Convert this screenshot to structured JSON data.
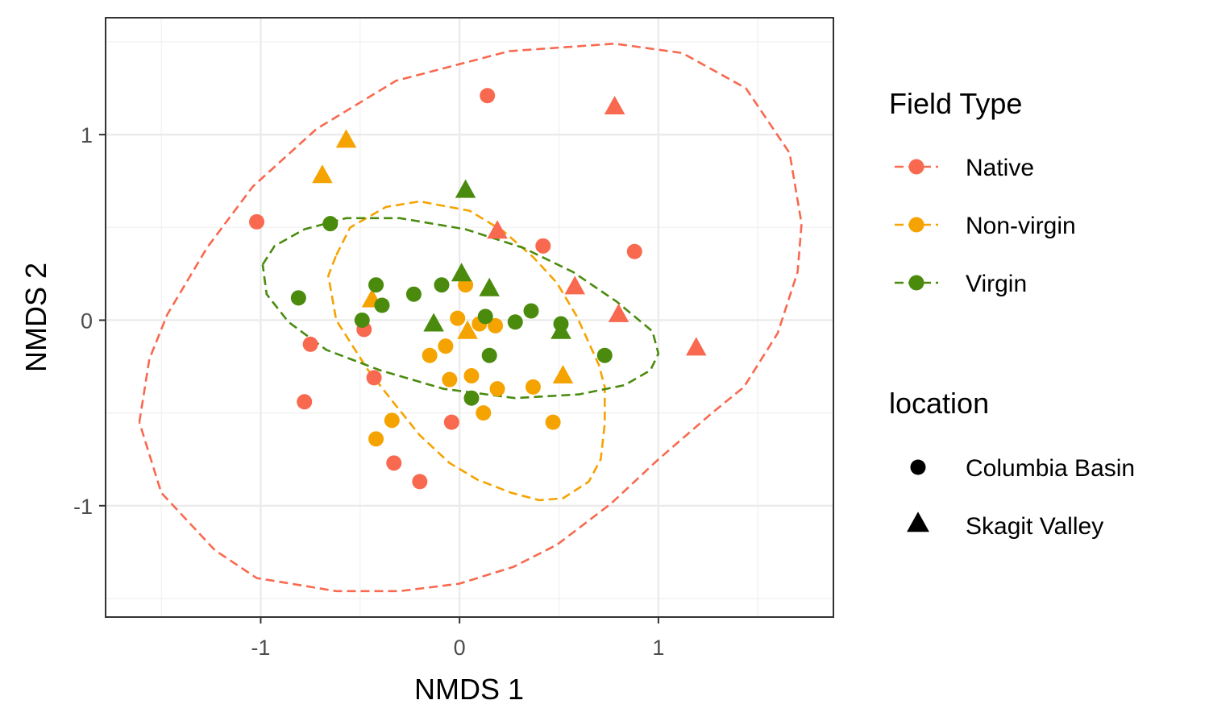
{
  "chart_data": {
    "type": "scatter",
    "xlabel": "NMDS 1",
    "ylabel": "NMDS 2",
    "xlim": [
      -1.78,
      1.88
    ],
    "ylim": [
      -1.6,
      1.63
    ],
    "x_ticks": [
      -1,
      0,
      1
    ],
    "y_ticks": [
      -1,
      0,
      1
    ],
    "x_tick_labels": [
      "-1",
      "0",
      "1"
    ],
    "y_tick_labels": [
      "-1",
      "0",
      "1"
    ],
    "grid": true,
    "legend_position": "right",
    "legends": [
      {
        "title": "Field Type",
        "entries": [
          {
            "label": "Native",
            "color": "#F8694F"
          },
          {
            "label": "Non-virgin",
            "color": "#F5A300"
          },
          {
            "label": "Virgin",
            "color": "#4A8B0E"
          }
        ]
      },
      {
        "title": "location",
        "entries": [
          {
            "label": "Columbia Basin",
            "shape": "circle"
          },
          {
            "label": "Skagit Valley",
            "shape": "triangle"
          }
        ]
      }
    ],
    "series": [
      {
        "name": "Native",
        "color": "#F8694F",
        "points": [
          {
            "x": 0.14,
            "y": 1.21,
            "location": "Columbia Basin"
          },
          {
            "x": -1.02,
            "y": 0.53,
            "location": "Columbia Basin"
          },
          {
            "x": 0.42,
            "y": 0.4,
            "location": "Columbia Basin"
          },
          {
            "x": 0.88,
            "y": 0.37,
            "location": "Columbia Basin"
          },
          {
            "x": -0.48,
            "y": -0.05,
            "location": "Columbia Basin"
          },
          {
            "x": -0.75,
            "y": -0.13,
            "location": "Columbia Basin"
          },
          {
            "x": -0.43,
            "y": -0.31,
            "location": "Columbia Basin"
          },
          {
            "x": -0.78,
            "y": -0.44,
            "location": "Columbia Basin"
          },
          {
            "x": -0.04,
            "y": -0.55,
            "location": "Columbia Basin"
          },
          {
            "x": -0.33,
            "y": -0.77,
            "location": "Columbia Basin"
          },
          {
            "x": -0.2,
            "y": -0.87,
            "location": "Columbia Basin"
          },
          {
            "x": 0.78,
            "y": 1.15,
            "location": "Skagit Valley"
          },
          {
            "x": 0.19,
            "y": 0.48,
            "location": "Skagit Valley"
          },
          {
            "x": 0.58,
            "y": 0.18,
            "location": "Skagit Valley"
          },
          {
            "x": 0.8,
            "y": 0.03,
            "location": "Skagit Valley"
          },
          {
            "x": 1.19,
            "y": -0.15,
            "location": "Skagit Valley"
          }
        ]
      },
      {
        "name": "Non-virgin",
        "color": "#F5A300",
        "points": [
          {
            "x": 0.03,
            "y": 0.19,
            "location": "Columbia Basin"
          },
          {
            "x": -0.01,
            "y": 0.01,
            "location": "Columbia Basin"
          },
          {
            "x": 0.1,
            "y": -0.02,
            "location": "Columbia Basin"
          },
          {
            "x": 0.18,
            "y": -0.03,
            "location": "Columbia Basin"
          },
          {
            "x": -0.07,
            "y": -0.14,
            "location": "Columbia Basin"
          },
          {
            "x": -0.15,
            "y": -0.19,
            "location": "Columbia Basin"
          },
          {
            "x": -0.05,
            "y": -0.32,
            "location": "Columbia Basin"
          },
          {
            "x": 0.06,
            "y": -0.3,
            "location": "Columbia Basin"
          },
          {
            "x": 0.19,
            "y": -0.37,
            "location": "Columbia Basin"
          },
          {
            "x": 0.37,
            "y": -0.36,
            "location": "Columbia Basin"
          },
          {
            "x": 0.12,
            "y": -0.5,
            "location": "Columbia Basin"
          },
          {
            "x": -0.34,
            "y": -0.54,
            "location": "Columbia Basin"
          },
          {
            "x": 0.47,
            "y": -0.55,
            "location": "Columbia Basin"
          },
          {
            "x": -0.42,
            "y": -0.64,
            "location": "Columbia Basin"
          },
          {
            "x": -0.57,
            "y": 0.97,
            "location": "Skagit Valley"
          },
          {
            "x": -0.69,
            "y": 0.78,
            "location": "Skagit Valley"
          },
          {
            "x": -0.44,
            "y": 0.11,
            "location": "Skagit Valley"
          },
          {
            "x": 0.04,
            "y": -0.06,
            "location": "Skagit Valley"
          },
          {
            "x": 0.52,
            "y": -0.3,
            "location": "Skagit Valley"
          }
        ]
      },
      {
        "name": "Virgin",
        "color": "#4A8B0E",
        "points": [
          {
            "x": -0.65,
            "y": 0.52,
            "location": "Columbia Basin"
          },
          {
            "x": -0.81,
            "y": 0.12,
            "location": "Columbia Basin"
          },
          {
            "x": -0.42,
            "y": 0.19,
            "location": "Columbia Basin"
          },
          {
            "x": -0.09,
            "y": 0.19,
            "location": "Columbia Basin"
          },
          {
            "x": -0.23,
            "y": 0.14,
            "location": "Columbia Basin"
          },
          {
            "x": -0.39,
            "y": 0.08,
            "location": "Columbia Basin"
          },
          {
            "x": -0.49,
            "y": 0.0,
            "location": "Columbia Basin"
          },
          {
            "x": 0.13,
            "y": 0.02,
            "location": "Columbia Basin"
          },
          {
            "x": 0.28,
            "y": -0.01,
            "location": "Columbia Basin"
          },
          {
            "x": 0.36,
            "y": 0.05,
            "location": "Columbia Basin"
          },
          {
            "x": 0.51,
            "y": -0.02,
            "location": "Columbia Basin"
          },
          {
            "x": 0.15,
            "y": -0.19,
            "location": "Columbia Basin"
          },
          {
            "x": 0.73,
            "y": -0.19,
            "location": "Columbia Basin"
          },
          {
            "x": 0.06,
            "y": -0.42,
            "location": "Columbia Basin"
          },
          {
            "x": 0.03,
            "y": 0.7,
            "location": "Skagit Valley"
          },
          {
            "x": 0.01,
            "y": 0.25,
            "location": "Skagit Valley"
          },
          {
            "x": 0.15,
            "y": 0.17,
            "location": "Skagit Valley"
          },
          {
            "x": -0.13,
            "y": -0.02,
            "location": "Skagit Valley"
          },
          {
            "x": 0.51,
            "y": -0.06,
            "location": "Skagit Valley"
          }
        ]
      }
    ],
    "ellipses": [
      {
        "name": "Native",
        "color": "#F8694F",
        "path": [
          [
            -1.61,
            -0.55
          ],
          [
            -1.56,
            -0.21
          ],
          [
            -1.47,
            0.03
          ],
          [
            -1.27,
            0.39
          ],
          [
            -1.04,
            0.72
          ],
          [
            -0.72,
            1.03
          ],
          [
            -0.32,
            1.29
          ],
          [
            0.25,
            1.45
          ],
          [
            0.78,
            1.49
          ],
          [
            1.12,
            1.44
          ],
          [
            1.44,
            1.25
          ],
          [
            1.66,
            0.9
          ],
          [
            1.72,
            0.52
          ],
          [
            1.7,
            0.26
          ],
          [
            1.6,
            -0.07
          ],
          [
            1.43,
            -0.36
          ],
          [
            1.27,
            -0.5
          ],
          [
            1.0,
            -0.75
          ],
          [
            0.76,
            -0.99
          ],
          [
            0.49,
            -1.21
          ],
          [
            0.27,
            -1.33
          ],
          [
            0.0,
            -1.42
          ],
          [
            -0.3,
            -1.46
          ],
          [
            -0.62,
            -1.46
          ],
          [
            -1.02,
            -1.39
          ],
          [
            -1.23,
            -1.24
          ],
          [
            -1.5,
            -0.93
          ],
          [
            -1.61,
            -0.55
          ]
        ]
      },
      {
        "name": "Non-virgin",
        "color": "#F5A300",
        "path": [
          [
            -0.62,
            0.35
          ],
          [
            -0.55,
            0.5
          ],
          [
            -0.37,
            0.61
          ],
          [
            -0.2,
            0.64
          ],
          [
            0.05,
            0.59
          ],
          [
            0.22,
            0.48
          ],
          [
            0.37,
            0.34
          ],
          [
            0.49,
            0.2
          ],
          [
            0.59,
            0.02
          ],
          [
            0.7,
            -0.24
          ],
          [
            0.73,
            -0.36
          ],
          [
            0.73,
            -0.56
          ],
          [
            0.71,
            -0.75
          ],
          [
            0.65,
            -0.87
          ],
          [
            0.52,
            -0.96
          ],
          [
            0.4,
            -0.97
          ],
          [
            0.26,
            -0.93
          ],
          [
            0.09,
            -0.86
          ],
          [
            -0.05,
            -0.77
          ],
          [
            -0.2,
            -0.62
          ],
          [
            -0.32,
            -0.46
          ],
          [
            -0.46,
            -0.27
          ],
          [
            -0.62,
            0.0
          ],
          [
            -0.66,
            0.24
          ],
          [
            -0.62,
            0.35
          ]
        ]
      },
      {
        "name": "Virgin",
        "color": "#4A8B0E",
        "path": [
          [
            -0.99,
            0.3
          ],
          [
            -0.93,
            0.4
          ],
          [
            -0.78,
            0.49
          ],
          [
            -0.57,
            0.55
          ],
          [
            -0.3,
            0.55
          ],
          [
            0.03,
            0.49
          ],
          [
            0.32,
            0.39
          ],
          [
            0.57,
            0.26
          ],
          [
            0.79,
            0.1
          ],
          [
            0.97,
            -0.06
          ],
          [
            1.0,
            -0.18
          ],
          [
            0.96,
            -0.27
          ],
          [
            0.83,
            -0.35
          ],
          [
            0.6,
            -0.4
          ],
          [
            0.28,
            -0.42
          ],
          [
            -0.08,
            -0.37
          ],
          [
            -0.4,
            -0.27
          ],
          [
            -0.67,
            -0.16
          ],
          [
            -0.86,
            -0.01
          ],
          [
            -0.97,
            0.14
          ],
          [
            -0.99,
            0.3
          ]
        ]
      }
    ]
  }
}
